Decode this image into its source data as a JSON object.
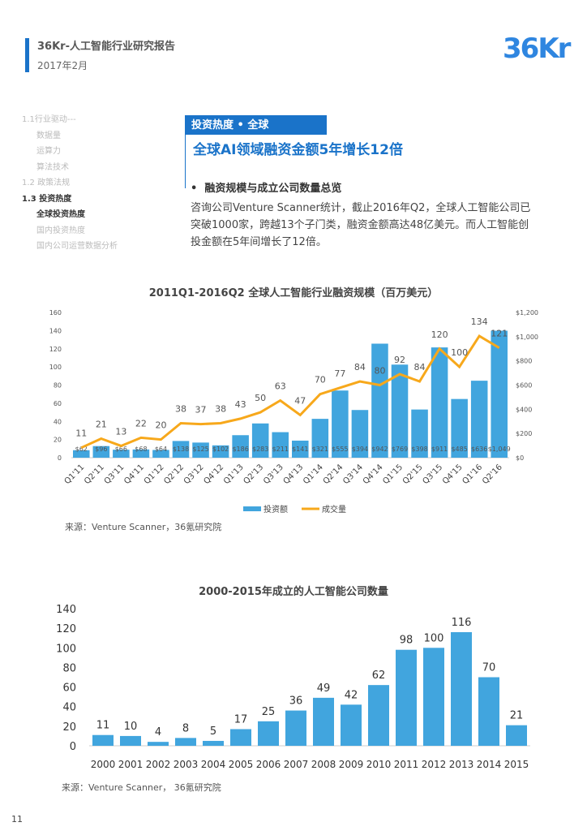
{
  "header": {
    "title": "36Kr-人工智能行业研究报告",
    "date": "2017年2月",
    "logo": "36Kr"
  },
  "nav": [
    {
      "label": "1.1行业驱动---",
      "level": 1,
      "active": false
    },
    {
      "label": "数据量",
      "level": 2,
      "active": false
    },
    {
      "label": "运算力",
      "level": 2,
      "active": false
    },
    {
      "label": "算法技术",
      "level": 2,
      "active": false
    },
    {
      "label": "1.2 政策法规",
      "level": 1,
      "active": false
    },
    {
      "label": "1.3 投资热度",
      "level": 1,
      "active": true
    },
    {
      "label": "全球投资热度",
      "level": 2,
      "active": true
    },
    {
      "label": "国内投资热度",
      "level": 2,
      "active": false
    },
    {
      "label": "国内公司运营数据分析",
      "level": 2,
      "active": false
    }
  ],
  "section": {
    "tag": "投资热度 • 全球",
    "headline": "全球AI领域融资金额5年增长12倍",
    "subheading": "融资规模与成立公司数量总览",
    "bullet": "•",
    "paragraph": "咨询公司Venture Scanner统计，截止2016年Q2，全球人工智能公司已突破1000家，跨越13个子门类，融资金额高达48亿美元。而人工智能创投金额在5年间增长了12倍。"
  },
  "chart_data": [
    {
      "type": "bar+line",
      "title": "2011Q1-2016Q2 全球人工智能行业融资规模（百万美元）",
      "categories": [
        "Q1'11",
        "Q2'11",
        "Q3'11",
        "Q4'11",
        "Q1'12",
        "Q2'12",
        "Q3'12",
        "Q4'12",
        "Q1'13",
        "Q2'13",
        "Q3'13",
        "Q4'13",
        "Q1'14",
        "Q2'14",
        "Q3'14",
        "Q4'14",
        "Q1'15",
        "Q2'15",
        "Q3'15",
        "Q4'15",
        "Q1'16",
        "Q2'16"
      ],
      "series": [
        {
          "name": "投资额",
          "type": "bar",
          "axis": "right",
          "color": "#41a5de",
          "values": [
            62,
            96,
            66,
            68,
            64,
            138,
            125,
            102,
            186,
            283,
            211,
            141,
            321,
            555,
            394,
            942,
            769,
            398,
            911,
            485,
            636,
            1049
          ],
          "labels": [
            "$62",
            "$96",
            "$66",
            "$68",
            "$64",
            "$138",
            "$125",
            "$102",
            "$186",
            "$283",
            "$211",
            "$141",
            "$321",
            "$555",
            "$394",
            "$942",
            "$769",
            "$398",
            "$911",
            "$485",
            "$636",
            "$1,049"
          ]
        },
        {
          "name": "成交量",
          "type": "line",
          "axis": "left",
          "color": "#f7a81b",
          "values": [
            11,
            21,
            13,
            22,
            20,
            38,
            37,
            38,
            43,
            50,
            63,
            47,
            70,
            77,
            84,
            80,
            92,
            84,
            120,
            100,
            134,
            121
          ]
        }
      ],
      "ylim_left": [
        0,
        160
      ],
      "yticks_left": [
        "0",
        "20",
        "40",
        "60",
        "80",
        "100",
        "120",
        "140",
        "160"
      ],
      "ylim_right": [
        0,
        1200
      ],
      "yticks_right": [
        "$0",
        "$200",
        "$400",
        "$600",
        "$800",
        "$1,000",
        "$1,200"
      ],
      "legend": "bottom",
      "source": "来源：Venture Scanner，36氪研究院"
    },
    {
      "type": "bar",
      "title": "2000-2015年成立的人工智能公司数量",
      "categories": [
        "2000",
        "2001",
        "2002",
        "2003",
        "2004",
        "2005",
        "2006",
        "2007",
        "2008",
        "2009",
        "2010",
        "2011",
        "2012",
        "2013",
        "2014",
        "2015"
      ],
      "values": [
        11,
        10,
        4,
        8,
        5,
        17,
        25,
        36,
        49,
        42,
        62,
        98,
        100,
        116,
        70,
        21
      ],
      "color": "#41a5de",
      "ylim": [
        0,
        140
      ],
      "yticks": [
        "0",
        "20",
        "40",
        "60",
        "80",
        "100",
        "120",
        "140"
      ],
      "source": "来源：Venture Scanner， 36氪研究院"
    }
  ],
  "page_number": "11"
}
